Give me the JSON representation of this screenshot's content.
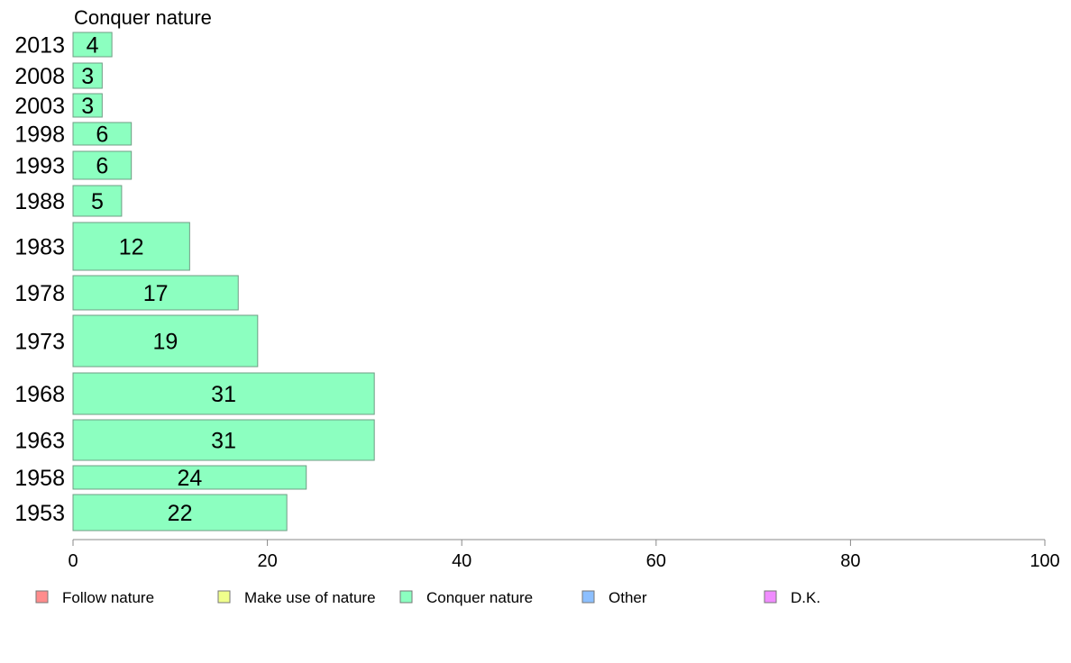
{
  "chart_data": {
    "type": "bar",
    "orientation": "horizontal",
    "title": "Conquer nature",
    "xlabel": "",
    "ylabel": "",
    "xlim": [
      0,
      100
    ],
    "xticks": [
      0,
      20,
      40,
      60,
      80,
      100
    ],
    "grid": false,
    "categories": [
      "2013",
      "2008",
      "2003",
      "1998",
      "1993",
      "1988",
      "1983",
      "1978",
      "1973",
      "1968",
      "1963",
      "1958",
      "1953"
    ],
    "series": [
      {
        "name": "Conquer nature",
        "color": "#8cffc0",
        "values": [
          4,
          3,
          3,
          6,
          6,
          5,
          12,
          17,
          19,
          31,
          31,
          24,
          22
        ]
      }
    ],
    "legend": {
      "placement": "bottom",
      "entries": [
        {
          "label": "Follow nature",
          "color": "#ff8c8c"
        },
        {
          "label": "Make use of nature",
          "color": "#f0ff8c"
        },
        {
          "label": "Conquer nature",
          "color": "#8cffc0"
        },
        {
          "label": "Other",
          "color": "#8cbfff"
        },
        {
          "label": "D.K.",
          "color": "#f08cff"
        }
      ]
    }
  }
}
